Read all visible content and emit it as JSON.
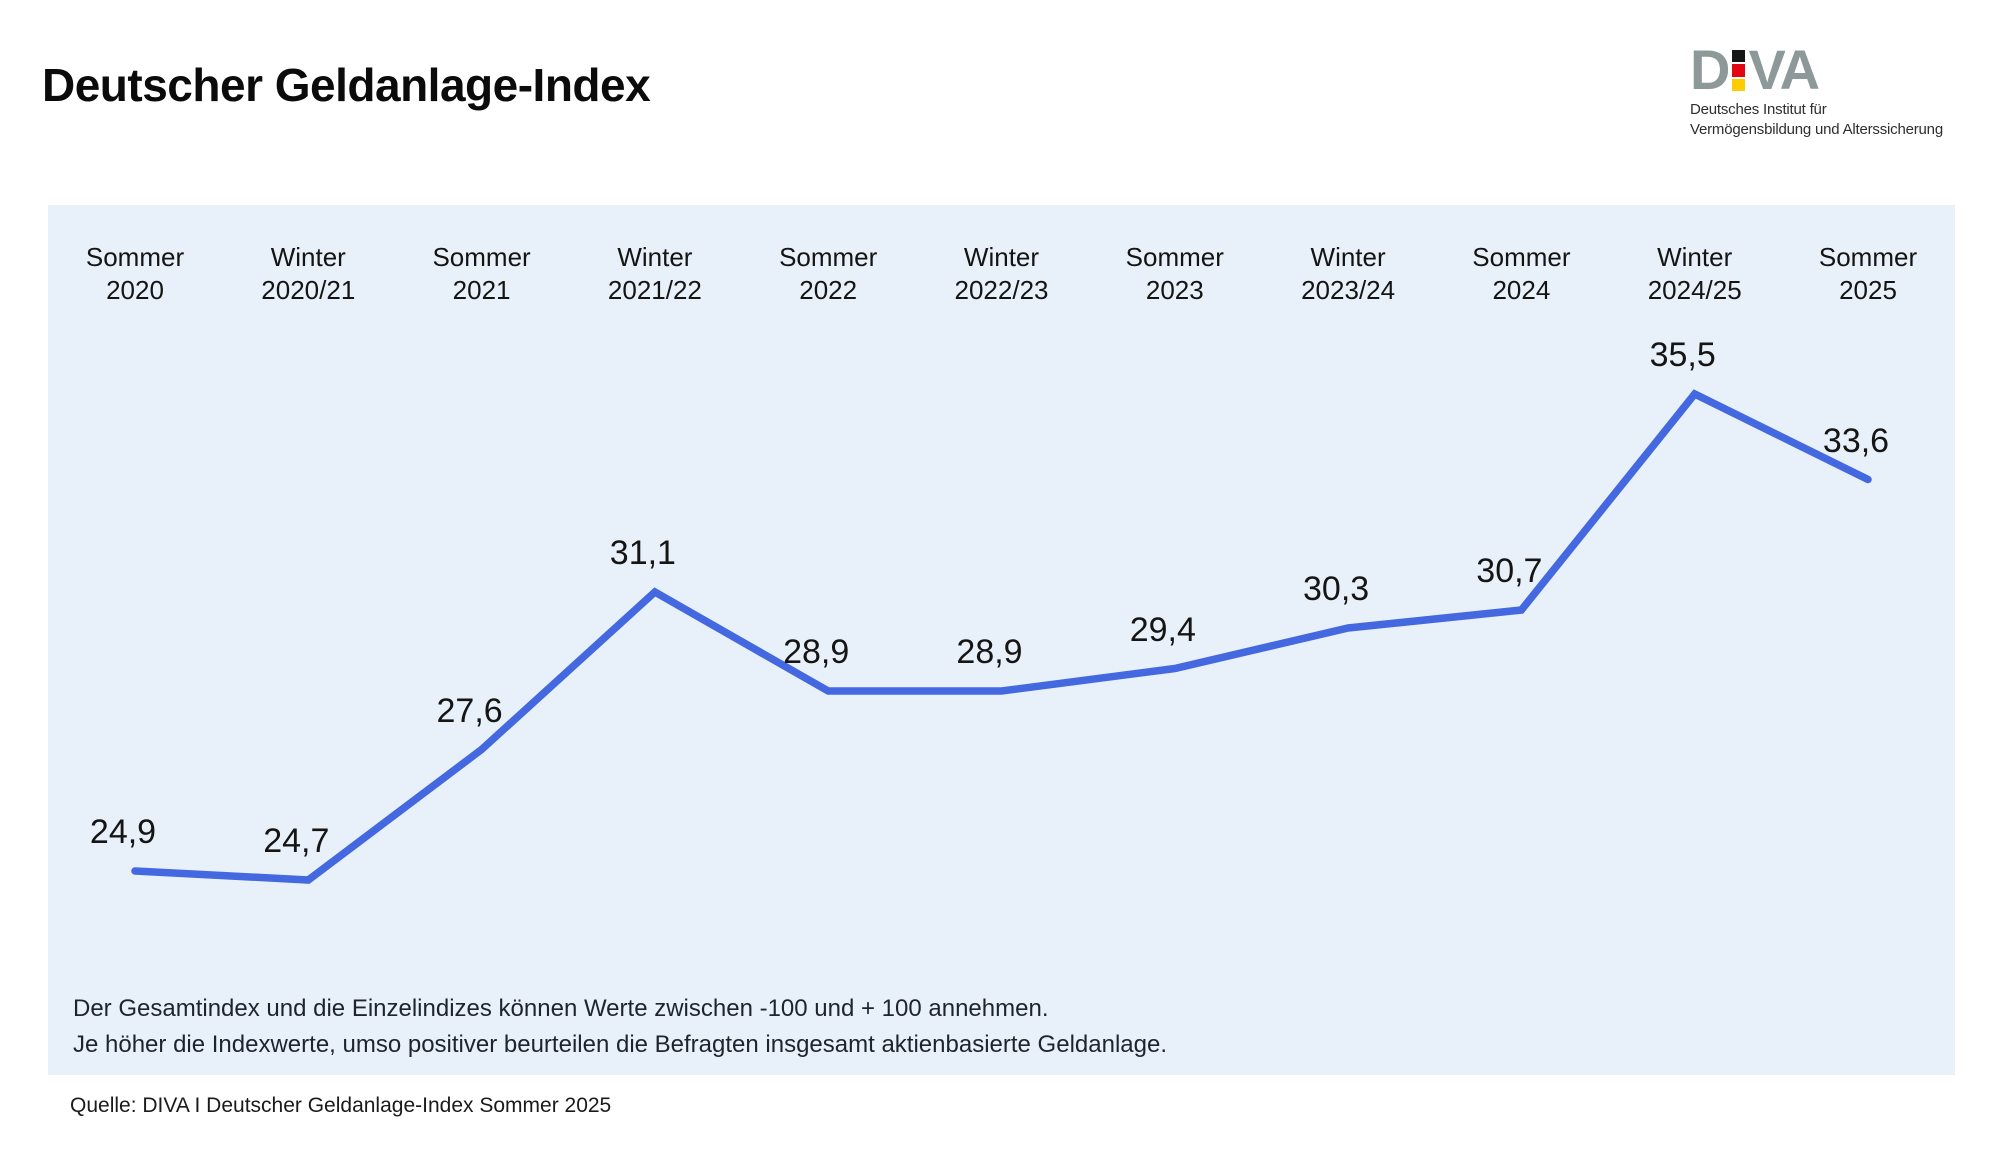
{
  "header": {
    "title": "Deutscher Geldanlage-Index"
  },
  "logo": {
    "letter_d": "D",
    "letters_va": "VA",
    "subtitle_line1": "Deutsches Institut für",
    "subtitle_line2": "Vermögensbildung und Alterssicherung",
    "colors": {
      "letters": "#8D9998",
      "square_black": "#161616",
      "square_red": "#E30613",
      "square_yellow": "#FFCC00"
    }
  },
  "chart_data": {
    "type": "line",
    "title": "Deutscher Geldanlage-Index",
    "categories": [
      "Sommer 2020",
      "Winter 2020/21",
      "Sommer 2021",
      "Winter 2021/22",
      "Sommer 2022",
      "Winter 2022/23",
      "Sommer 2023",
      "Winter 2023/24",
      "Sommer 2024",
      "Winter 2024/25",
      "Sommer 2025"
    ],
    "values": [
      24.9,
      24.7,
      27.6,
      31.1,
      28.9,
      28.9,
      29.4,
      30.3,
      30.7,
      35.5,
      33.6
    ],
    "value_labels": [
      "24,9",
      "24,7",
      "27,6",
      "31,1",
      "28,9",
      "28,9",
      "29,4",
      "30,3",
      "30,7",
      "35,5",
      "33,6"
    ],
    "xlabel": "",
    "ylabel": "",
    "index_range": [
      -100,
      100
    ],
    "axes_visible": false,
    "grid": false,
    "legend": false,
    "value_label_position": "above-points",
    "line_color": "#4468E0",
    "background": "#E8F1F9"
  },
  "footnote": {
    "line1": "Der Gesamtindex und die Einzelindizes können Werte zwischen -100 und + 100 annehmen.",
    "line2": "Je höher die Indexwerte, umso positiver beurteilen die Befragten insgesamt aktienbasierte Geldanlage."
  },
  "source": "Quelle: DIVA I Deutscher Geldanlage-Index Sommer 2025"
}
